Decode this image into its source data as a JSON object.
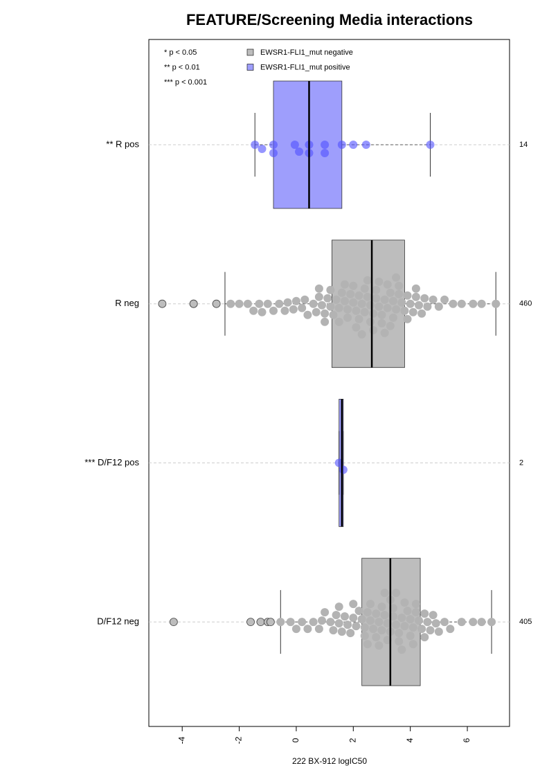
{
  "chart_data": {
    "type": "boxplot",
    "title": "FEATURE/Screening Media interactions",
    "xlabel": "222 BX-912 logIC50",
    "xlim": [
      -5.17,
      7.48
    ],
    "xticks": [
      -4,
      -2,
      0,
      2,
      4,
      6
    ],
    "notes": [
      "* p < 0.05",
      "** p < 0.01",
      "*** p < 0.001"
    ],
    "series": [
      {
        "name": "EWSR1-FLI1_mut negative",
        "color": "#bdbdbd"
      },
      {
        "name": "EWSR1-FLI1_mut positive",
        "color": "#9e9efc"
      }
    ],
    "groups": [
      {
        "label": "** R pos",
        "count": 14,
        "series": 1,
        "whisker_low": -1.45,
        "q1": -0.8,
        "median": 0.45,
        "q3": 1.6,
        "whisker_high": 4.7,
        "points": [
          -1.45,
          -1.2,
          -0.8,
          -0.8,
          -0.05,
          0.1,
          0.45,
          0.45,
          1.0,
          1.0,
          1.6,
          2.0,
          2.45,
          4.7
        ],
        "outliers": []
      },
      {
        "label": "R neg",
        "count": 460,
        "series": 0,
        "whisker_low": -2.5,
        "q1": 1.25,
        "median": 2.65,
        "q3": 3.8,
        "whisker_high": 7.0,
        "points": [
          -2.3,
          -2.0,
          -1.7,
          -1.5,
          -1.3,
          -1.2,
          -1.0,
          -0.8,
          -0.6,
          -0.4,
          -0.3,
          -0.1,
          0.0,
          0.2,
          0.3,
          0.4,
          0.6,
          0.7,
          0.8,
          0.9,
          1.0,
          1.1,
          1.2,
          1.3,
          1.4,
          1.5,
          1.6,
          1.7,
          1.8,
          1.9,
          2.0,
          2.1,
          2.2,
          2.3,
          2.4,
          2.5,
          2.6,
          2.7,
          2.8,
          2.9,
          3.0,
          3.1,
          3.2,
          3.3,
          3.4,
          3.5,
          3.6,
          3.7,
          3.8,
          3.9,
          4.0,
          4.1,
          4.2,
          4.3,
          4.4,
          4.5,
          4.6,
          4.8,
          5.0,
          5.2,
          5.5,
          5.8,
          6.2,
          6.5,
          7.0,
          1.5,
          1.8,
          2.0,
          2.2,
          2.4,
          2.6,
          2.8,
          3.0,
          3.2,
          3.4,
          3.6,
          2.1,
          2.5,
          2.9,
          3.3,
          1.2,
          1.7,
          2.3,
          2.7,
          3.1,
          3.5,
          3.9,
          4.2,
          0.8,
          1.0
        ],
        "outliers": [
          -4.7,
          -3.6,
          -3.6,
          -2.8
        ]
      },
      {
        "label": "*** D/F12 pos",
        "count": 2,
        "series": 1,
        "whisker_low": 1.5,
        "q1": 1.5,
        "median": 1.6,
        "q3": 1.65,
        "whisker_high": 1.65,
        "points": [
          1.5,
          1.65
        ],
        "outliers": []
      },
      {
        "label": "D/F12 neg",
        "count": 405,
        "series": 0,
        "whisker_low": -0.55,
        "q1": 2.3,
        "median": 3.3,
        "q3": 4.35,
        "whisker_high": 6.85,
        "points": [
          -0.55,
          -0.2,
          0.0,
          0.2,
          0.4,
          0.6,
          0.8,
          0.9,
          1.0,
          1.2,
          1.3,
          1.4,
          1.5,
          1.6,
          1.7,
          1.8,
          1.9,
          2.0,
          2.1,
          2.2,
          2.3,
          2.4,
          2.5,
          2.6,
          2.7,
          2.8,
          2.9,
          3.0,
          3.1,
          3.2,
          3.3,
          3.4,
          3.5,
          3.6,
          3.7,
          3.8,
          3.9,
          4.0,
          4.1,
          4.2,
          4.3,
          4.4,
          4.5,
          4.6,
          4.7,
          4.8,
          4.9,
          5.0,
          5.2,
          5.4,
          5.8,
          6.2,
          6.5,
          6.85,
          2.4,
          2.6,
          2.8,
          3.0,
          3.2,
          3.4,
          3.6,
          3.8,
          4.0,
          4.2,
          2.5,
          2.9,
          3.3,
          3.7,
          4.1,
          4.5,
          3.1,
          3.5,
          1.5,
          2.0
        ],
        "outliers": [
          -4.3,
          -1.6,
          -1.25,
          -1.0,
          -0.9
        ]
      }
    ]
  }
}
